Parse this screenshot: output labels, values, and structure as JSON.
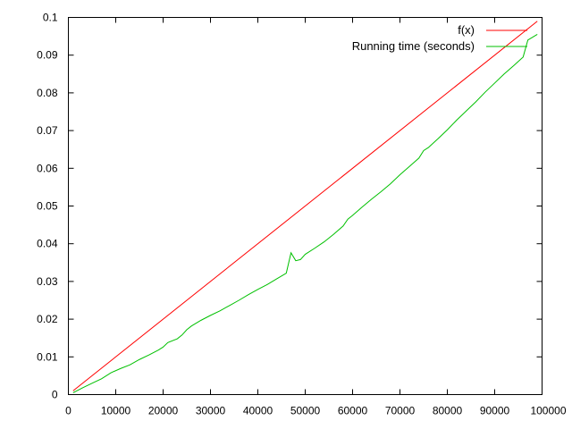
{
  "chart_data": {
    "type": "line",
    "title": "",
    "xlabel": "",
    "ylabel": "",
    "xlim": [
      0,
      100000
    ],
    "ylim": [
      0,
      0.1
    ],
    "grid": false,
    "legend_position": "top-right",
    "x_ticks": [
      0,
      10000,
      20000,
      30000,
      40000,
      50000,
      60000,
      70000,
      80000,
      90000,
      100000
    ],
    "y_ticks": [
      0,
      0.01,
      0.02,
      0.03,
      0.04,
      0.05,
      0.06,
      0.07,
      0.08,
      0.09,
      0.1
    ],
    "x_tick_labels": [
      "0",
      "10000",
      "20000",
      "30000",
      "40000",
      "50000",
      "60000",
      "70000",
      "80000",
      "90000",
      "100000"
    ],
    "y_tick_labels": [
      "0",
      "0.01",
      "0.02",
      "0.03",
      "0.04",
      "0.05",
      "0.06",
      "0.07",
      "0.08",
      "0.09",
      "0.1"
    ],
    "series": [
      {
        "name": "f(x)",
        "color": "#ff0000",
        "x": [
          1000,
          99000
        ],
        "y": [
          0.001,
          0.099
        ]
      },
      {
        "name": "Running time (seconds)",
        "color": "#00c000",
        "x": [
          1000,
          3000,
          5000,
          7000,
          9000,
          11000,
          13000,
          15000,
          17000,
          19000,
          20000,
          21000,
          23000,
          24000,
          25000,
          26000,
          28000,
          30000,
          32000,
          34000,
          36000,
          38000,
          40000,
          42000,
          44000,
          46000,
          47000,
          48000,
          49000,
          50000,
          52000,
          54000,
          56000,
          58000,
          59000,
          60000,
          62000,
          64000,
          66000,
          68000,
          70000,
          72000,
          74000,
          75000,
          76000,
          78000,
          80000,
          82000,
          84000,
          86000,
          88000,
          90000,
          92000,
          94000,
          96000,
          97000,
          99000
        ],
        "y": [
          0.0005,
          0.0018,
          0.003,
          0.0042,
          0.0058,
          0.0069,
          0.0079,
          0.0093,
          0.0105,
          0.0118,
          0.0126,
          0.0138,
          0.0148,
          0.0158,
          0.0172,
          0.0182,
          0.0197,
          0.021,
          0.0222,
          0.0236,
          0.025,
          0.0265,
          0.0279,
          0.0292,
          0.0307,
          0.0322,
          0.0376,
          0.0355,
          0.0358,
          0.0372,
          0.0388,
          0.0405,
          0.0425,
          0.0447,
          0.0465,
          0.0475,
          0.0497,
          0.0518,
          0.0538,
          0.0559,
          0.0583,
          0.0605,
          0.0627,
          0.0647,
          0.0655,
          0.0678,
          0.0702,
          0.0728,
          0.0752,
          0.0776,
          0.0802,
          0.0826,
          0.085,
          0.0872,
          0.0895,
          0.094,
          0.0955
        ]
      }
    ]
  }
}
